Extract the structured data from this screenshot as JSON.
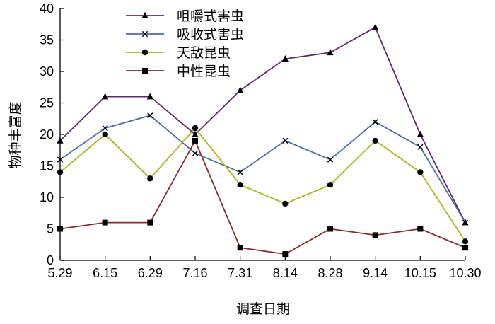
{
  "chart_data": {
    "type": "line",
    "title": "",
    "xlabel": "调查日期",
    "ylabel": "物种丰富度",
    "categories": [
      "5.29",
      "6.15",
      "6.29",
      "7.16",
      "7.31",
      "8.14",
      "8.28",
      "9.14",
      "10.15",
      "10.30"
    ],
    "ylim": [
      0,
      40
    ],
    "yticks": [
      0,
      5,
      10,
      15,
      20,
      25,
      30,
      35,
      40
    ],
    "grid": false,
    "legend_position": "top-center",
    "series": [
      {
        "name": "咀嚼式害虫",
        "color": "#5b2a6e",
        "marker": "triangle",
        "values": [
          19,
          26,
          26,
          20,
          27,
          32,
          33,
          37,
          20,
          6
        ]
      },
      {
        "name": "吸收式害虫",
        "color": "#4f6aa6",
        "marker": "x",
        "values": [
          16,
          21,
          23,
          17,
          14,
          19,
          16,
          22,
          18,
          6
        ]
      },
      {
        "name": "天敌昆虫",
        "color": "#a8b51e",
        "marker": "circle",
        "values": [
          14,
          20,
          13,
          21,
          12,
          9,
          12,
          19,
          14,
          3
        ]
      },
      {
        "name": "中性昆虫",
        "color": "#8a2a2a",
        "marker": "square",
        "values": [
          5,
          6,
          6,
          19,
          2,
          1,
          5,
          4,
          5,
          2
        ]
      }
    ]
  }
}
